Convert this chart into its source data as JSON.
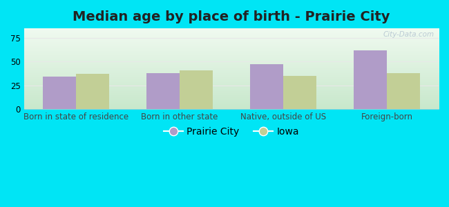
{
  "title": "Median age by place of birth - Prairie City",
  "categories": [
    "Born in state of residence",
    "Born in other state",
    "Native, outside of US",
    "Foreign-born"
  ],
  "prairie_city": [
    34,
    38,
    47,
    62
  ],
  "iowa": [
    37,
    41,
    35,
    38
  ],
  "prairie_city_color": "#b09cc8",
  "iowa_color": "#c2cf96",
  "ylim": [
    0,
    85
  ],
  "yticks": [
    0,
    25,
    50,
    75
  ],
  "background_outer": "#00e5f5",
  "bg_top": "#f0faf0",
  "bg_bottom": "#c8e8cc",
  "grid_color": "#e8e8e8",
  "bar_width": 0.32,
  "legend_prairie_city": "Prairie City",
  "legend_iowa": "Iowa",
  "title_fontsize": 14,
  "tick_fontsize": 8.5,
  "legend_fontsize": 10,
  "watermark": "City-Data.com"
}
